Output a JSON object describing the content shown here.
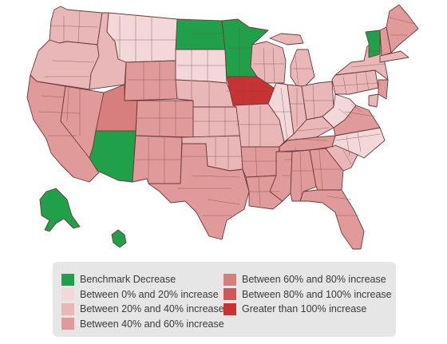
{
  "colors": {
    "decrease": "#1fa049",
    "p0_20": "#f2d8d8",
    "p20_40": "#e9b7b7",
    "p40_60": "#e09a9a",
    "p60_80": "#d77e7e",
    "p80_100": "#cf5959",
    "p100plus": "#c73333",
    "border": "#6d3a3a"
  },
  "legend": {
    "left": [
      {
        "key": "decrease",
        "label": "Benchmark Decrease"
      },
      {
        "key": "p0_20",
        "label": "Between 0% and 20% increase"
      },
      {
        "key": "p20_40",
        "label": "Between 20% and 40% increase"
      },
      {
        "key": "p40_60",
        "label": "Between 40% and 60% increase"
      }
    ],
    "right": [
      {
        "key": "p60_80",
        "label": "Between 60% and 80% increase"
      },
      {
        "key": "p80_100",
        "label": "Between 80% and 100% increase"
      },
      {
        "key": "p100plus",
        "label": "Greater than 100% increase"
      }
    ]
  },
  "regions": [
    {
      "id": "WA",
      "class": "p20_40"
    },
    {
      "id": "OR",
      "class": "p20_40"
    },
    {
      "id": "CA",
      "class": "p40_60"
    },
    {
      "id": "NV",
      "class": "p40_60"
    },
    {
      "id": "ID",
      "class": "p20_40"
    },
    {
      "id": "MT",
      "class": "p0_20"
    },
    {
      "id": "WY",
      "class": "p40_60"
    },
    {
      "id": "UT",
      "class": "p60_80"
    },
    {
      "id": "AZ",
      "class": "decrease"
    },
    {
      "id": "CO",
      "class": "p40_60"
    },
    {
      "id": "NM",
      "class": "p40_60"
    },
    {
      "id": "ND",
      "class": "decrease"
    },
    {
      "id": "SD",
      "class": "p0_20"
    },
    {
      "id": "NE",
      "class": "p20_40"
    },
    {
      "id": "KS",
      "class": "p20_40"
    },
    {
      "id": "OK",
      "class": "p20_40"
    },
    {
      "id": "TX",
      "class": "p40_60"
    },
    {
      "id": "MN",
      "class": "decrease"
    },
    {
      "id": "IA",
      "class": "p100plus"
    },
    {
      "id": "MO",
      "class": "p20_40"
    },
    {
      "id": "AR",
      "class": "p40_60"
    },
    {
      "id": "LA",
      "class": "p40_60"
    },
    {
      "id": "WI",
      "class": "p20_40"
    },
    {
      "id": "IL",
      "class": "p0_20"
    },
    {
      "id": "MI",
      "class": "p20_40"
    },
    {
      "id": "IN",
      "class": "p20_40"
    },
    {
      "id": "OH",
      "class": "p20_40"
    },
    {
      "id": "KY",
      "class": "p20_40"
    },
    {
      "id": "TN",
      "class": "p40_60"
    },
    {
      "id": "MS",
      "class": "p40_60"
    },
    {
      "id": "AL",
      "class": "p40_60"
    },
    {
      "id": "GA",
      "class": "p40_60"
    },
    {
      "id": "FL",
      "class": "p40_60"
    },
    {
      "id": "SC",
      "class": "p20_40"
    },
    {
      "id": "NC",
      "class": "p0_20"
    },
    {
      "id": "VA",
      "class": "p40_60"
    },
    {
      "id": "WV",
      "class": "p0_20"
    },
    {
      "id": "PA",
      "class": "p20_40"
    },
    {
      "id": "NY",
      "class": "p20_40"
    },
    {
      "id": "VT",
      "class": "decrease"
    },
    {
      "id": "NH",
      "class": "p40_60"
    },
    {
      "id": "ME",
      "class": "p40_60"
    },
    {
      "id": "NJ",
      "class": "p40_60"
    },
    {
      "id": "AK",
      "class": "decrease"
    },
    {
      "id": "HI",
      "class": "decrease"
    }
  ]
}
